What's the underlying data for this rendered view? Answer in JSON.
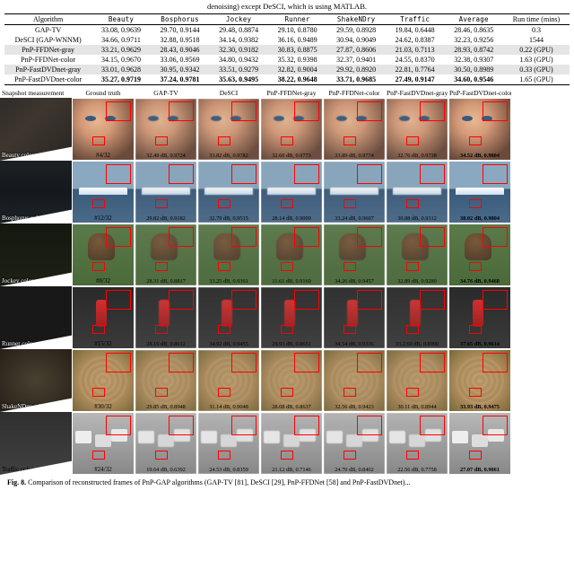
{
  "caption_top": "denoising) except DeSCI, which is using MATLAB.",
  "table": {
    "header": [
      "Algorithm",
      "Beauty",
      "Bosphorus",
      "Jockey",
      "Runner",
      "ShakeNDry",
      "Traffic",
      "Average",
      "Run time (mins)"
    ],
    "rows": [
      {
        "alg": "GAP-TV",
        "hl": false,
        "bold_cols": [],
        "cells": [
          "33.08, 0.9639",
          "29.70, 0.9144",
          "29.48, 0.8874",
          "29.10, 0.8780",
          "29.59, 0.8928",
          "19.84, 0.6448",
          "28.46, 0.8635",
          "0.3"
        ]
      },
      {
        "alg": "DeSCI (GAP-WNNM)",
        "hl": false,
        "bold_cols": [],
        "cells": [
          "34.66, 0.9711",
          "32.88, 0.9518",
          "34.14, 0.9382",
          "36.16, 0.9489",
          "30.94, 0.9049",
          "24.62, 0.8387",
          "32.23, 0.9256",
          "1544"
        ]
      },
      {
        "alg": "PnP-FFDNet-gray",
        "hl": true,
        "bold_cols": [],
        "cells": [
          "33.21, 0.9629",
          "28.43, 0.9046",
          "32.30, 0.9182",
          "30.83, 0.8875",
          "27.87, 0.8606",
          "21.03, 0.7113",
          "28.93, 0.8742",
          "0.22 (GPU)"
        ]
      },
      {
        "alg": "PnP-FFDNet-color",
        "hl": false,
        "bold_cols": [],
        "cells": [
          "34.15, 0.9670",
          "33.06, 0.9569",
          "34.80, 0.9432",
          "35.32, 0.9398",
          "32.37, 0.9401",
          "24.55, 0.8370",
          "32.38, 0.9307",
          "1.63 (GPU)"
        ]
      },
      {
        "alg": "PnP-FastDVDnet-gray",
        "hl": true,
        "bold_cols": [],
        "cells": [
          "33.01, 0.9628",
          "30.95, 0.9342",
          "33.51, 0.9279",
          "32.82, 0.9004",
          "29.92, 0.8920",
          "22.81, 0.7764",
          "30.50, 0.8989",
          "0.33 (GPU)"
        ]
      },
      {
        "alg": "PnP-FastDVDnet-color",
        "hl": false,
        "bold_cols": [
          0,
          1,
          2,
          3,
          4,
          5,
          6
        ],
        "cells": [
          "35.27, 0.9719",
          "37.24, 0.9781",
          "35.63, 0.9495",
          "38.22, 0.9648",
          "33.71, 0.9685",
          "27.49, 0.9147",
          "34.60, 0.9546",
          "1.65 (GPU)"
        ]
      }
    ]
  },
  "grid": {
    "header": [
      "Snapshot measurement",
      "Ground truth",
      "GAP-TV",
      "DeSCI",
      "PnP-FFDNet-gray",
      "PnP-FFDNet-color",
      "PnP-FastDVDnet-gray",
      "PnP-FastDVDnet-color"
    ],
    "rows": [
      {
        "name": "Beauty color",
        "snap_class": "snap-beauty",
        "bg_class": "bg-beauty",
        "label_dark": false,
        "gt": "#4/32",
        "metrics": [
          "32.49 dB, 0.9724",
          "33.82 dB, 0.9782",
          "32.60 dB, 0.9773",
          "33.89 dB, 0.9774",
          "32.76 dB, 0.9738",
          "34.52 dB, 0.9804"
        ],
        "bold_last": true
      },
      {
        "name": "Bosphorus color",
        "snap_class": "snap-bosph",
        "bg_class": "bg-bosph",
        "label_dark": false,
        "gt": "#12/32",
        "metrics": [
          "29.82 dB, 0.9182",
          "32.79 dB, 0.9515",
          "28.14 dB, 0.9009",
          "33.24 dB, 0.9607",
          "30.88 dB, 0.9312",
          "38.02 dB, 0.9804"
        ],
        "bold_last": true
      },
      {
        "name": "Jockey color",
        "snap_class": "snap-jockey",
        "bg_class": "bg-jockey",
        "label_dark": false,
        "gt": "#8/32",
        "metrics": [
          "28.31 dB, 0.8817",
          "33.25 dB, 0.9361",
          "31.61 dB, 0.9160",
          "34.26 dB, 0.9457",
          "32.89 dB, 0.9280",
          "34.76 dB, 0.9468"
        ],
        "bold_last": true
      },
      {
        "name": "Runner color",
        "snap_class": "snap-runner",
        "bg_class": "bg-runner",
        "label_dark": false,
        "gt": "#15/32",
        "metrics": [
          "28.16 dB, 0.8612",
          "34.92 dB, 0.9455",
          "29.93 dB, 0.8651",
          "34.54 dB, 0.9336",
          "33.2.60 dB, 0.8990",
          "37.65 dB, 0.9614"
        ],
        "bold_last": true
      },
      {
        "name": "ShakeNDry color",
        "snap_class": "snap-shake",
        "bg_class": "bg-shake",
        "label_dark": false,
        "gt": "#30/32",
        "metrics": [
          "29.85 dB, 0.8948",
          "31.14 dB, 0.9048",
          "28.08 dB, 0.8637",
          "32.56 dB, 0.9423",
          "30.11 dB, 0.8944",
          "33.93 dB, 0.9475"
        ],
        "bold_last": true
      },
      {
        "name": "Traffic color",
        "snap_class": "snap-traffic",
        "bg_class": "bg-traffic",
        "label_dark": true,
        "gt": "#24/32",
        "metrics": [
          "19.64 dB, 0.6392",
          "24.53 dB, 0.8359",
          "21.12 dB, 0.7146",
          "24.70 dB, 0.8402",
          "22.56 dB, 0.7758",
          "27.07 dB, 0.9061"
        ],
        "bold_last": true
      }
    ]
  },
  "caption_bottom_prefix": "Fig. 8.",
  "caption_bottom": " Comparison of reconstructed frames of PnP-GAP algorithms (GAP-TV [81], DeSCI [29], PnP-FFDNet [58] and PnP-FastDVDnet)..."
}
